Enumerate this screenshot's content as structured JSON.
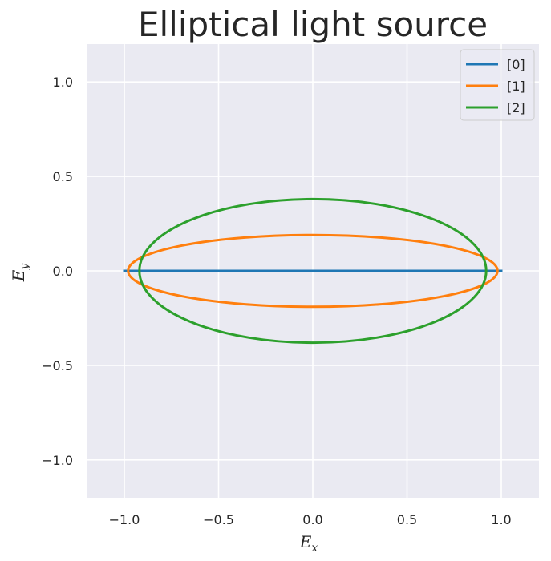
{
  "chart_data": {
    "type": "line",
    "title": "Elliptical light source",
    "xlabel": {
      "main": "E",
      "sub": "x"
    },
    "ylabel": {
      "main": "E",
      "sub": "y"
    },
    "xlim": [
      -1.2,
      1.2
    ],
    "ylim": [
      -1.2,
      1.2
    ],
    "x_ticks": [
      -1.0,
      -0.5,
      0.0,
      0.5,
      1.0
    ],
    "y_ticks": [
      -1.0,
      -0.5,
      0.0,
      0.5,
      1.0
    ],
    "x_tick_labels": [
      "−1.0",
      "−0.5",
      "0.0",
      "0.5",
      "1.0"
    ],
    "y_tick_labels": [
      "−1.0",
      "−0.5",
      "0.0",
      "0.5",
      "1.0"
    ],
    "grid": true,
    "legend_position": "top-right",
    "series": [
      {
        "name": "[0]",
        "color": "#1f77b4",
        "shape": "ellipse",
        "semi_axis_x": 1.0,
        "semi_axis_y": 0.0
      },
      {
        "name": "[1]",
        "color": "#ff7f0e",
        "shape": "ellipse",
        "semi_axis_x": 0.98,
        "semi_axis_y": 0.19
      },
      {
        "name": "[2]",
        "color": "#2ca02c",
        "shape": "ellipse",
        "semi_axis_x": 0.92,
        "semi_axis_y": 0.38
      }
    ]
  }
}
